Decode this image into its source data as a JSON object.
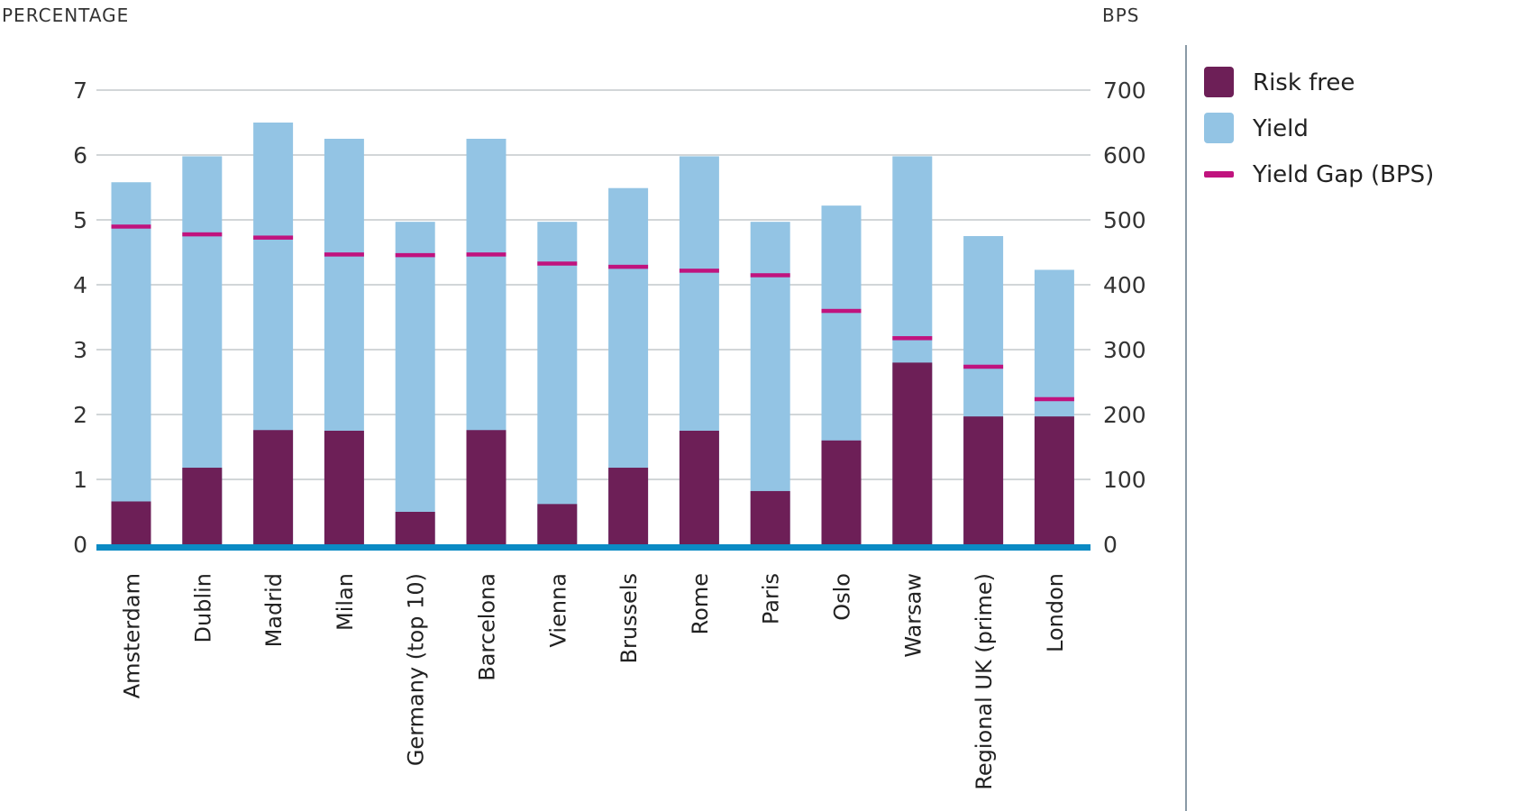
{
  "chart_data": {
    "type": "bar",
    "stacked": true,
    "title": "",
    "y_left_label": "PERCENTAGE",
    "y_right_label": "BPS",
    "ylim_left": [
      0,
      7
    ],
    "ylim_right": [
      0,
      700
    ],
    "y_left_ticks": [
      "0",
      "1",
      "2",
      "3",
      "4",
      "5",
      "6",
      "7"
    ],
    "y_right_ticks": [
      "0",
      "100",
      "200",
      "300",
      "400",
      "500",
      "600",
      "700"
    ],
    "grid": true,
    "legend_position": "right",
    "categories": [
      "Amsterdam",
      "Dublin",
      "Madrid",
      "Milan",
      "Germany (top 10)",
      "Barcelona",
      "Vienna",
      "Brussels",
      "Rome",
      "Paris",
      "Oslo",
      "Warsaw",
      "Regional UK (prime)",
      "London"
    ],
    "series": [
      {
        "name": "Risk free",
        "kind": "bar",
        "axis": "left",
        "color": "#6d1f57",
        "values": [
          0.66,
          1.18,
          1.76,
          1.75,
          0.5,
          1.76,
          0.62,
          1.18,
          1.75,
          0.82,
          1.6,
          2.8,
          1.97,
          1.97
        ]
      },
      {
        "name": "Yield",
        "kind": "bar",
        "axis": "left",
        "color": "#93c4e4",
        "total_values": [
          5.58,
          5.98,
          6.5,
          6.25,
          4.97,
          6.25,
          4.97,
          5.49,
          5.98,
          4.97,
          5.22,
          5.98,
          4.75,
          4.23
        ]
      },
      {
        "name": "Yield Gap (BPS)",
        "kind": "marker",
        "axis": "right",
        "color": "#c0137e",
        "values": [
          490,
          478,
          473,
          447,
          446,
          447,
          433,
          428,
          422,
          415,
          360,
          318,
          274,
          224
        ]
      }
    ]
  }
}
